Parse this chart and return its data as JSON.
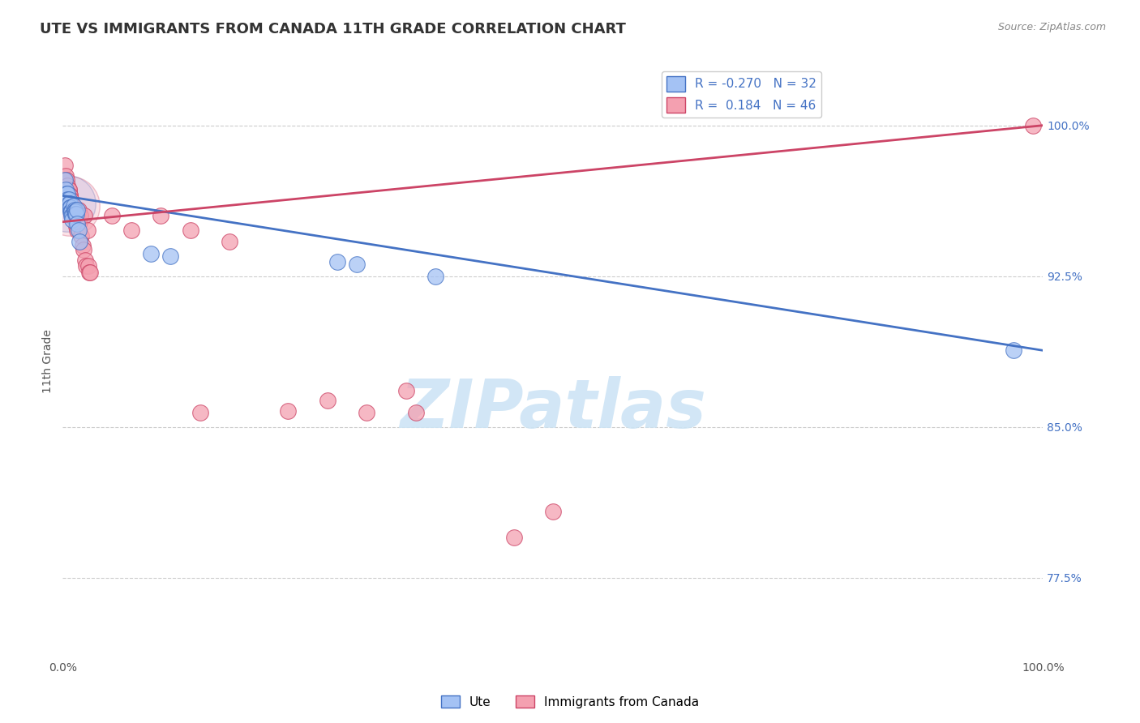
{
  "title": "UTE VS IMMIGRANTS FROM CANADA 11TH GRADE CORRELATION CHART",
  "source": "Source: ZipAtlas.com",
  "ylabel": "11th Grade",
  "xlim": [
    0.0,
    1.0
  ],
  "ylim": [
    0.735,
    1.03
  ],
  "x_tick_labels": [
    "0.0%",
    "100.0%"
  ],
  "y_tick_labels_right": [
    "77.5%",
    "85.0%",
    "92.5%",
    "100.0%"
  ],
  "y_tick_values_right": [
    0.775,
    0.85,
    0.925,
    1.0
  ],
  "blue_scatter_x": [
    0.002,
    0.003,
    0.004,
    0.005,
    0.005,
    0.006,
    0.006,
    0.007,
    0.007,
    0.008,
    0.008,
    0.009,
    0.009,
    0.009,
    0.01,
    0.01,
    0.011,
    0.012,
    0.012,
    0.013,
    0.013,
    0.014,
    0.015,
    0.015,
    0.016,
    0.017,
    0.09,
    0.11,
    0.28,
    0.3,
    0.38,
    0.97
  ],
  "blue_scatter_y": [
    0.973,
    0.968,
    0.966,
    0.966,
    0.963,
    0.963,
    0.961,
    0.961,
    0.959,
    0.959,
    0.957,
    0.957,
    0.957,
    0.955,
    0.955,
    0.953,
    0.96,
    0.958,
    0.957,
    0.957,
    0.956,
    0.956,
    0.958,
    0.951,
    0.948,
    0.942,
    0.936,
    0.935,
    0.932,
    0.931,
    0.925,
    0.888
  ],
  "pink_scatter_x": [
    0.002,
    0.003,
    0.004,
    0.005,
    0.006,
    0.006,
    0.007,
    0.007,
    0.008,
    0.008,
    0.009,
    0.009,
    0.01,
    0.01,
    0.011,
    0.012,
    0.013,
    0.014,
    0.015,
    0.016,
    0.017,
    0.018,
    0.019,
    0.02,
    0.021,
    0.022,
    0.023,
    0.024,
    0.025,
    0.026,
    0.027,
    0.028,
    0.05,
    0.07,
    0.1,
    0.13,
    0.14,
    0.17,
    0.23,
    0.27,
    0.31,
    0.35,
    0.36,
    0.46,
    0.5,
    0.99
  ],
  "pink_scatter_y": [
    0.98,
    0.975,
    0.973,
    0.97,
    0.968,
    0.968,
    0.965,
    0.965,
    0.963,
    0.963,
    0.961,
    0.961,
    0.96,
    0.957,
    0.957,
    0.954,
    0.953,
    0.95,
    0.948,
    0.958,
    0.952,
    0.955,
    0.945,
    0.94,
    0.938,
    0.955,
    0.933,
    0.93,
    0.948,
    0.93,
    0.927,
    0.927,
    0.955,
    0.948,
    0.955,
    0.948,
    0.857,
    0.942,
    0.858,
    0.863,
    0.857,
    0.868,
    0.857,
    0.795,
    0.808,
    1.0
  ],
  "blue_line_x": [
    0.0,
    1.0
  ],
  "blue_line_y": [
    0.965,
    0.888
  ],
  "pink_line_x": [
    0.0,
    1.0
  ],
  "pink_line_y": [
    0.952,
    1.0
  ],
  "blue_color": "#4472c4",
  "pink_color": "#cc4466",
  "blue_scatter_color": "#a4c2f4",
  "pink_scatter_color": "#f4a0b0",
  "watermark_text": "ZIPatlas",
  "watermark_color": "#cde4f5",
  "grid_color": "#cccccc",
  "background_color": "#ffffff",
  "title_fontsize": 13,
  "axis_label_fontsize": 10,
  "tick_fontsize": 10,
  "legend_label_blue": "R = -0.270   N = 32",
  "legend_label_pink": "R =  0.184   N = 46",
  "bottom_legend_blue": "Ute",
  "bottom_legend_pink": "Immigrants from Canada"
}
